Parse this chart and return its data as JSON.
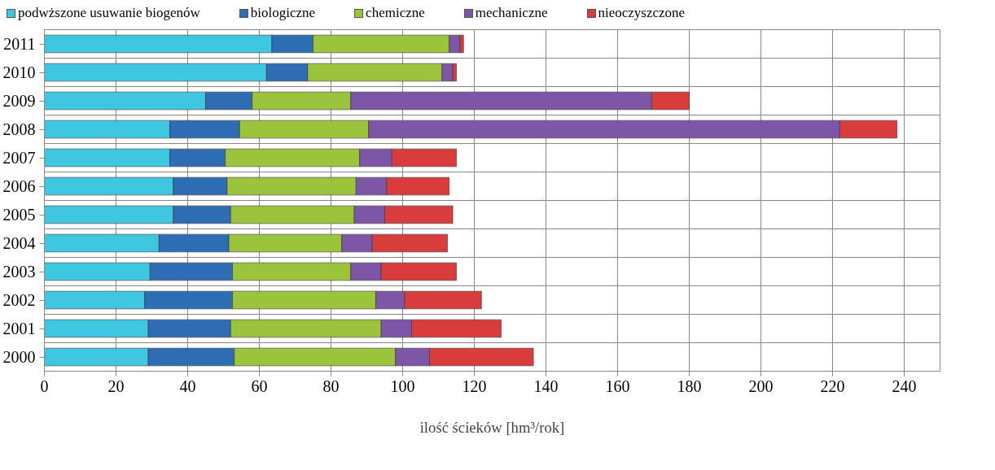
{
  "chart_data": {
    "type": "bar",
    "orientation": "horizontal",
    "stacked": true,
    "xlabel": "ilość ścieków [hm³/rok]",
    "categories": [
      "2011",
      "2010",
      "2009",
      "2008",
      "2007",
      "2006",
      "2005",
      "2004",
      "2003",
      "2002",
      "2001",
      "2000"
    ],
    "series": [
      {
        "name": "podwższone usuwanie biogenów",
        "color": "#3fc6e0",
        "values": [
          63.5,
          62,
          45,
          35,
          35,
          36,
          36,
          32,
          29.5,
          28,
          29,
          29
        ]
      },
      {
        "name": "biologiczne",
        "color": "#2e6db4",
        "values": [
          11.5,
          11.5,
          13,
          19.5,
          15.5,
          15,
          16,
          19.5,
          23,
          24.5,
          23,
          24
        ]
      },
      {
        "name": "chemiczne",
        "color": "#9bc43c",
        "values": [
          38,
          37.5,
          27.5,
          36,
          37.5,
          36,
          34.5,
          31.5,
          33,
          40,
          42,
          45
        ]
      },
      {
        "name": "mechaniczne",
        "color": "#7d56a8",
        "values": [
          3,
          3,
          84,
          131.5,
          9,
          8.5,
          8.5,
          8.5,
          8.5,
          8,
          8.5,
          9.5
        ]
      },
      {
        "name": "nieoczyszczone",
        "color": "#d83c3c",
        "values": [
          1,
          1,
          10.5,
          16,
          18,
          17.5,
          19,
          21,
          21,
          21.5,
          25,
          29
        ]
      }
    ],
    "xlim": [
      0,
      250
    ],
    "xticks": [
      0,
      20,
      40,
      60,
      80,
      100,
      120,
      140,
      160,
      180,
      200,
      220,
      240
    ],
    "grid": true,
    "legend": "top"
  }
}
